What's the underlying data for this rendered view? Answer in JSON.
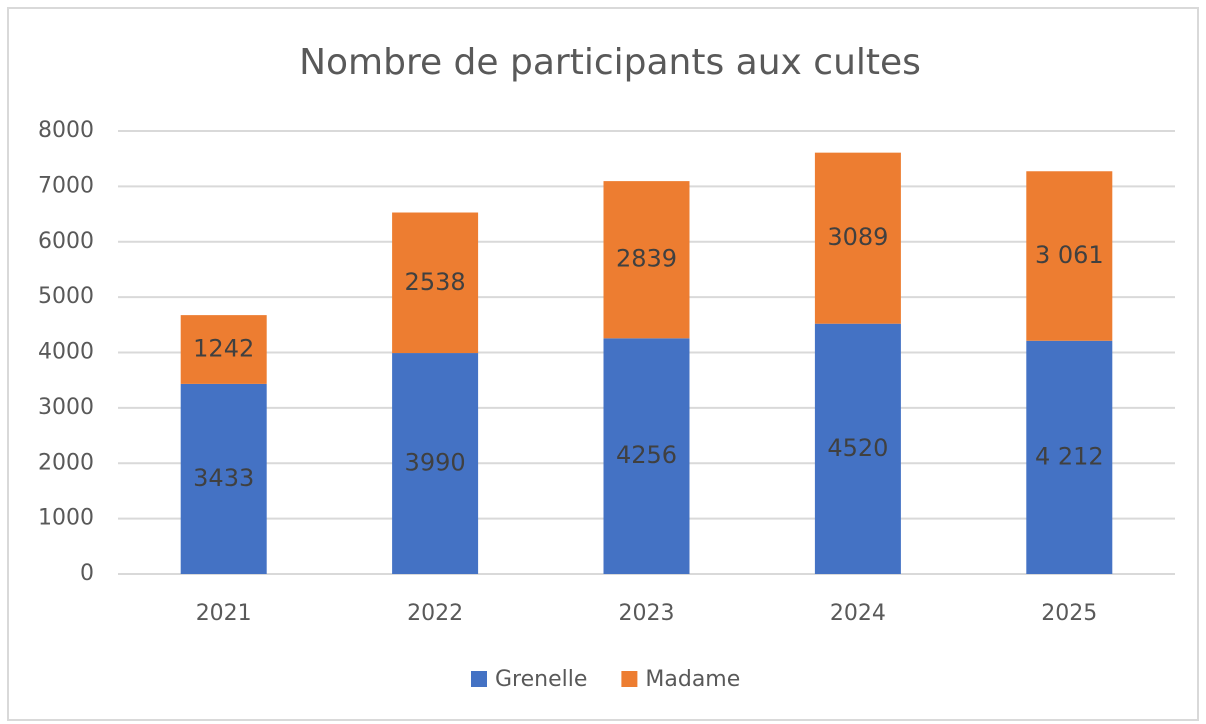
{
  "chart_data": {
    "type": "stacked_bar",
    "title": "Nombre de participants aux cultes",
    "categories": [
      "2021",
      "2022",
      "2023",
      "2024",
      "2025"
    ],
    "series": [
      {
        "name": "Grenelle",
        "color": "#4472c4",
        "values": [
          3433,
          3990,
          4256,
          4520,
          4212
        ],
        "value_labels": [
          "3433",
          "3990",
          "4256",
          "4520",
          "4 212"
        ]
      },
      {
        "name": "Madame",
        "color": "#ed7d31",
        "values": [
          1242,
          2538,
          2839,
          3089,
          3061
        ],
        "value_labels": [
          "1242",
          "2538",
          "2839",
          "3089",
          "3 061"
        ]
      }
    ],
    "ylim": [
      0,
      8000
    ],
    "yticks": [
      0,
      1000,
      2000,
      3000,
      4000,
      5000,
      6000,
      7000,
      8000
    ],
    "grid": true,
    "legend": "bottom"
  }
}
